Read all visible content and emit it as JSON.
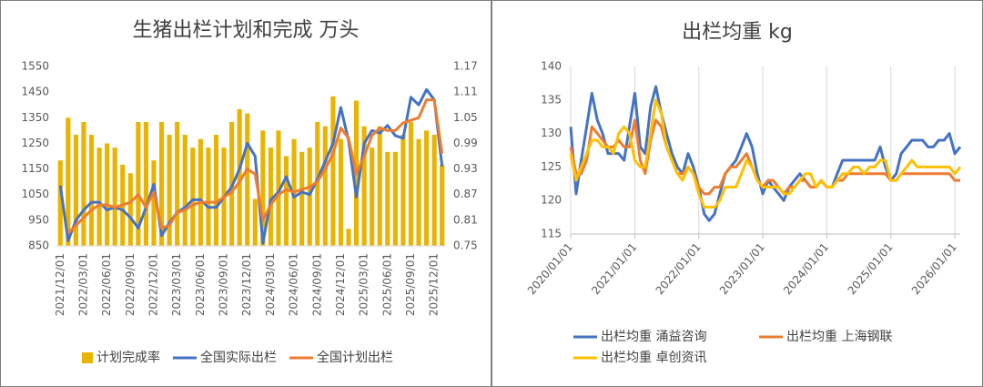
{
  "chart_data": [
    {
      "type": "bar",
      "title": "生猪出栏计划和完成 万头",
      "categories": [
        "2021/12/01",
        null,
        null,
        "2022/03/01",
        null,
        null,
        "2022/06/01",
        null,
        null,
        "2022/09/01",
        null,
        null,
        "2022/12/01",
        null,
        null,
        "2023/03/01",
        null,
        null,
        "2023/06/01",
        null,
        null,
        "2023/09/01",
        null,
        null,
        "2023/12/01",
        null,
        null,
        "2024/03/01",
        null,
        null,
        "2024/06/01",
        null,
        null,
        "2024/09/01",
        null,
        null,
        "2024/12/01",
        null,
        null,
        "2025/03/01",
        null,
        null,
        "2025/06/01",
        null,
        null,
        "2025/09/01",
        null,
        null,
        "2025/12/01",
        null
      ],
      "ylim": [
        850,
        1550
      ],
      "yticks": [
        850,
        950,
        1050,
        1150,
        1250,
        1350,
        1450,
        1550
      ],
      "y2lim": [
        0.75,
        1.17
      ],
      "y2ticks": [
        0.75,
        0.81,
        0.87,
        0.93,
        0.99,
        1.05,
        1.11,
        1.17
      ],
      "series": [
        {
          "name": "计划完成率",
          "type": "bar",
          "axis": "y2",
          "color": "#e9b300",
          "values": [
            0.95,
            1.05,
            1.01,
            1.04,
            1.01,
            0.98,
            0.99,
            0.98,
            0.94,
            0.92,
            1.04,
            1.04,
            0.95,
            1.04,
            1.01,
            1.04,
            1.01,
            0.98,
            1.0,
            0.98,
            1.01,
            0.98,
            1.04,
            1.07,
            1.06,
            0.86,
            1.02,
            0.98,
            1.02,
            0.96,
            1.0,
            0.97,
            0.98,
            1.04,
            1.03,
            1.1,
            1.0,
            0.79,
            1.09,
            1.03,
            0.98,
            1.03,
            0.97,
            0.97,
            1.01,
            1.04,
            1.0,
            1.02,
            1.01,
            0.94
          ]
        },
        {
          "name": "全国实际出栏",
          "type": "line",
          "color": "#4472c4",
          "values": [
            1085,
            870,
            950,
            990,
            1020,
            1020,
            990,
            1000,
            990,
            960,
            920,
            1000,
            1090,
            890,
            940,
            980,
            1000,
            1030,
            1030,
            1000,
            1000,
            1040,
            1080,
            1150,
            1250,
            1200,
            860,
            1030,
            1060,
            1120,
            1040,
            1060,
            1050,
            1110,
            1180,
            1250,
            1390,
            1260,
            1040,
            1250,
            1300,
            1290,
            1320,
            1280,
            1270,
            1430,
            1400,
            1460,
            1420,
            1160
          ]
        },
        {
          "name": "全国计划出栏",
          "type": "line",
          "color": "#ed7d31",
          "values": [
            null,
            900,
            930,
            960,
            990,
            1010,
            1010,
            1000,
            1010,
            1020,
            1050,
            1000,
            1060,
            920,
            930,
            980,
            990,
            1010,
            1020,
            1020,
            1020,
            1040,
            1060,
            1100,
            1150,
            1130,
            950,
            1010,
            1050,
            1070,
            1060,
            1070,
            1080,
            1100,
            1150,
            1210,
            1310,
            1270,
            1130,
            1200,
            1280,
            1310,
            1300,
            1300,
            1330,
            1340,
            1350,
            1420,
            1420,
            1210
          ]
        }
      ]
    },
    {
      "type": "line",
      "title": "出栏均重 kg",
      "x": [
        "2020/01/01",
        "2020/02/01",
        "2020/03/01",
        "2020/04/01",
        "2020/05/01",
        "2020/06/01",
        "2020/07/01",
        "2020/08/01",
        "2020/09/01",
        "2020/10/01",
        "2020/11/01",
        "2020/12/01",
        "2021/01/01",
        "2021/02/01",
        "2021/03/01",
        "2021/04/01",
        "2021/05/01",
        "2021/06/01",
        "2021/07/01",
        "2021/08/01",
        "2021/09/01",
        "2021/10/01",
        "2021/11/01",
        "2021/12/01",
        "2022/01/01",
        "2022/02/01",
        "2022/03/01",
        "2022/04/01",
        "2022/05/01",
        "2022/06/01",
        "2022/07/01",
        "2022/08/01",
        "2022/09/01",
        "2022/10/01",
        "2022/11/01",
        "2022/12/01",
        "2023/01/01",
        "2023/02/01",
        "2023/03/01",
        "2023/04/01",
        "2023/05/01",
        "2023/06/01",
        "2023/07/01",
        "2023/08/01",
        "2023/09/01",
        "2023/10/01",
        "2023/11/01",
        "2023/12/01",
        "2024/01/01",
        "2024/02/01",
        "2024/03/01",
        "2024/04/01",
        "2024/05/01",
        "2024/06/01",
        "2024/07/01",
        "2024/08/01",
        "2024/09/01",
        "2024/10/01",
        "2024/11/01",
        "2024/12/01",
        "2025/01/01",
        "2025/02/01",
        "2025/03/01",
        "2025/04/01",
        "2025/05/01",
        "2025/06/01",
        "2025/07/01",
        "2025/08/01",
        "2025/09/01",
        "2025/10/01",
        "2025/11/01",
        "2025/12/01",
        "2026/01/01",
        "2026/02/01"
      ],
      "xlim": [
        "2020/01/01",
        "2026/02/01"
      ],
      "xticks": [
        "2020/01/01",
        "2021/01/01",
        "2022/01/01",
        "2023/01/01",
        "2024/01/01",
        "2025/01/01",
        "2026/01/01"
      ],
      "ylim": [
        115,
        140
      ],
      "yticks": [
        115,
        120,
        125,
        130,
        135,
        140
      ],
      "grid": true,
      "series": [
        {
          "name": "出栏均重 涌益咨询",
          "color": "#4472c4",
          "values": [
            131,
            121,
            126,
            131,
            136,
            132,
            130,
            127,
            127,
            127,
            126,
            131,
            136,
            128,
            127,
            134,
            137,
            133,
            130,
            127,
            125,
            124,
            127,
            125,
            122,
            118,
            117,
            118,
            121,
            124,
            125,
            126,
            128,
            130,
            128,
            124,
            121,
            123,
            122,
            121,
            120,
            122,
            123,
            124,
            123,
            122,
            122,
            123,
            122,
            122,
            124,
            126,
            126,
            126,
            126,
            126,
            126,
            126,
            128,
            125,
            123,
            124,
            127,
            128,
            129,
            129,
            129,
            128,
            128,
            129,
            129,
            130,
            127,
            128
          ]
        },
        {
          "name": "出栏均重 上海钢联",
          "color": "#ed7d31",
          "values": [
            128,
            124,
            124,
            126,
            131,
            130,
            129,
            128,
            128,
            129,
            128,
            128,
            132,
            126,
            124,
            129,
            132,
            131,
            128,
            126,
            124,
            124,
            125,
            124,
            122,
            121,
            121,
            122,
            122,
            124,
            125,
            125,
            126,
            127,
            125,
            123,
            122,
            123,
            123,
            122,
            121,
            122,
            122,
            123,
            123,
            122,
            122,
            123,
            122,
            122,
            123,
            123,
            124,
            124,
            124,
            124,
            124,
            124,
            124,
            124,
            123,
            123,
            124,
            124,
            124,
            124,
            124,
            124,
            124,
            124,
            124,
            124,
            123,
            123
          ]
        },
        {
          "name": "出栏均重 卓创资讯",
          "color": "#ffc000",
          "values": [
            127,
            123,
            125,
            127,
            129,
            129,
            128,
            128,
            127,
            130,
            131,
            130,
            126,
            125,
            125,
            130,
            135,
            133,
            128,
            126,
            124,
            123,
            125,
            124,
            121,
            119,
            119,
            119,
            120,
            122,
            122,
            122,
            124,
            126,
            125,
            123,
            122,
            122,
            122,
            122,
            121,
            121,
            122,
            123,
            124,
            124,
            122,
            123,
            122,
            122,
            123,
            124,
            124,
            125,
            125,
            124,
            125,
            125,
            126,
            126,
            123,
            123,
            124,
            125,
            126,
            125,
            125,
            125,
            125,
            125,
            125,
            125,
            124,
            125
          ]
        }
      ]
    }
  ]
}
